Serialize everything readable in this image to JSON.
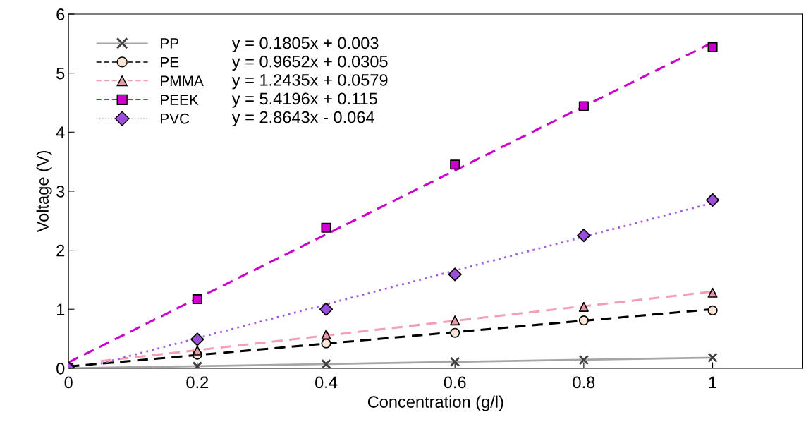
{
  "chart_data": {
    "type": "scatter",
    "xlabel": "Concentration (g/l)",
    "ylabel": "Voltage (V)",
    "x": [
      0,
      0.2,
      0.4,
      0.6,
      0.8,
      1
    ],
    "xlim": [
      0,
      1.14
    ],
    "xticks": [
      0,
      0.2,
      0.4,
      0.6,
      0.8,
      1
    ],
    "ylim": [
      0,
      6
    ],
    "yticks": [
      0,
      1,
      2,
      3,
      4,
      5,
      6
    ],
    "grid": false,
    "legend": "top left",
    "series": [
      {
        "name": "PP",
        "marker": "cross",
        "color": "#404040",
        "values": [
          null,
          0.03,
          0.07,
          0.11,
          0.14,
          0.18
        ]
      },
      {
        "name": "PE",
        "marker": "circle",
        "color": "#fbe5d6",
        "values": [
          null,
          0.23,
          0.42,
          0.6,
          0.81,
          0.98
        ]
      },
      {
        "name": "PMMA",
        "marker": "triangle",
        "color": "#e899a8",
        "values": [
          null,
          0.3,
          0.57,
          0.81,
          1.04,
          1.28
        ]
      },
      {
        "name": "PEEK",
        "marker": "square",
        "color": "#cc00cc",
        "values": [
          0,
          1.17,
          2.38,
          3.45,
          4.44,
          5.44
        ]
      },
      {
        "name": "PVC",
        "marker": "diamond",
        "color": "#9b4fd8",
        "values": [
          0,
          0.49,
          1.0,
          1.59,
          2.25,
          2.85
        ]
      },
      {
        "type": "line",
        "x": [
          0,
          1
        ],
        "color": "#a6a6a6",
        "line_style": "solid",
        "values": [
          0.0,
          0.18
        ]
      },
      {
        "type": "line",
        "x": [
          0,
          1
        ],
        "color": "#000000",
        "line_style": "dashed",
        "values": [
          0.03,
          1.0
        ]
      },
      {
        "type": "line",
        "x": [
          0.05,
          1
        ],
        "color": "#f4a0b4",
        "line_style": "dashed",
        "values": [
          0.12,
          1.3
        ]
      },
      {
        "type": "line",
        "x": [
          0,
          1
        ],
        "color": "#cc00cc",
        "line_style": "dashed",
        "values": [
          0.1,
          5.52
        ]
      },
      {
        "type": "line",
        "x": [
          0.05,
          1
        ],
        "color": "#a05ce0",
        "line_style": "dotted",
        "values": [
          0.08,
          2.8
        ]
      }
    ],
    "annotations": [
      "y = 0.1805x + 0.003",
      "y = 0.9652x + 0.0305",
      "y = 1.2435x + 0.0579",
      "y = 5.4196x + 0.115",
      "y = 2.8643x - 0.064"
    ]
  }
}
